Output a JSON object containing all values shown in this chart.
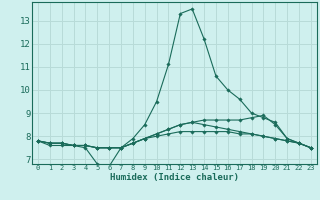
{
  "xlabel": "Humidex (Indice chaleur)",
  "background_color": "#cff0ee",
  "grid_color": "#b8dbd8",
  "line_color": "#1a6b5a",
  "spine_color": "#1a6b5a",
  "xlim": [
    -0.5,
    23.5
  ],
  "ylim": [
    6.8,
    13.8
  ],
  "yticks": [
    7,
    8,
    9,
    10,
    11,
    12,
    13
  ],
  "xticks": [
    0,
    1,
    2,
    3,
    4,
    5,
    6,
    7,
    8,
    9,
    10,
    11,
    12,
    13,
    14,
    15,
    16,
    17,
    18,
    19,
    20,
    21,
    22,
    23
  ],
  "series": [
    [
      7.8,
      7.6,
      7.6,
      7.6,
      7.5,
      6.8,
      6.7,
      7.5,
      7.9,
      8.5,
      9.5,
      11.1,
      13.3,
      13.5,
      12.2,
      10.6,
      10.0,
      9.6,
      9.0,
      8.8,
      8.6,
      7.9,
      7.7,
      7.5
    ],
    [
      7.8,
      7.7,
      7.7,
      7.6,
      7.6,
      7.5,
      7.5,
      7.5,
      7.7,
      7.9,
      8.1,
      8.3,
      8.5,
      8.6,
      8.7,
      8.7,
      8.7,
      8.7,
      8.8,
      8.9,
      8.5,
      7.9,
      7.7,
      7.5
    ],
    [
      7.8,
      7.7,
      7.7,
      7.6,
      7.6,
      7.5,
      7.5,
      7.5,
      7.7,
      7.9,
      8.1,
      8.3,
      8.5,
      8.6,
      8.5,
      8.4,
      8.3,
      8.2,
      8.1,
      8.0,
      7.9,
      7.8,
      7.7,
      7.5
    ],
    [
      7.8,
      7.7,
      7.7,
      7.6,
      7.6,
      7.5,
      7.5,
      7.5,
      7.7,
      7.9,
      8.0,
      8.1,
      8.2,
      8.2,
      8.2,
      8.2,
      8.2,
      8.1,
      8.1,
      8.0,
      7.9,
      7.8,
      7.7,
      7.5
    ]
  ]
}
